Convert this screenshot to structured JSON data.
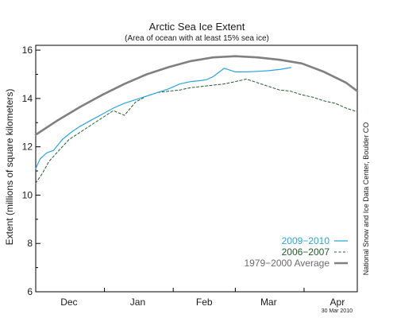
{
  "colors": {
    "series_2009_2010": "#29a6e0",
    "series_2006_2007": "#1f5c2a",
    "average": "#808080",
    "axes": "#000000"
  },
  "chart_data": {
    "type": "line",
    "title": "Arctic Sea Ice Extent",
    "subtitle": "(Area of ocean with at least 15% sea ice)",
    "ylabel": "Extent (millions of square kilometers)",
    "xlabel": "",
    "ylim": [
      6,
      16.2
    ],
    "yticks": [
      6,
      8,
      10,
      12,
      14,
      16
    ],
    "xticks": [
      "Dec",
      "Jan",
      "Feb",
      "Mar",
      "Apr"
    ],
    "xlim_days": [
      0,
      145
    ],
    "xtick_days": [
      15,
      46,
      76,
      105,
      136
    ],
    "grid": false,
    "legend_position": "bottom-right",
    "series": [
      {
        "name": "2009−2010",
        "style": "solid",
        "color": "#29a6e0",
        "x": [
          0,
          2,
          5,
          8,
          12,
          16,
          20,
          25,
          30,
          35,
          40,
          45,
          50,
          55,
          60,
          65,
          70,
          75,
          77,
          80,
          85,
          90,
          95,
          100,
          105,
          110,
          115
        ],
        "values": [
          11.1,
          11.5,
          11.75,
          11.85,
          12.3,
          12.6,
          12.85,
          13.1,
          13.35,
          13.6,
          13.8,
          13.95,
          14.1,
          14.25,
          14.4,
          14.6,
          14.7,
          14.75,
          14.78,
          14.9,
          15.25,
          15.1,
          15.1,
          15.12,
          15.15,
          15.2,
          15.28
        ]
      },
      {
        "name": "2006−2007",
        "style": "dashed",
        "color": "#1f5c2a",
        "x": [
          0,
          3,
          6,
          10,
          15,
          20,
          25,
          30,
          35,
          40,
          45,
          50,
          55,
          60,
          65,
          70,
          75,
          80,
          85,
          90,
          95,
          100,
          105,
          110,
          115,
          120,
          125,
          130,
          135,
          140,
          145
        ],
        "values": [
          10.5,
          10.9,
          11.4,
          11.8,
          12.3,
          12.6,
          12.9,
          13.2,
          13.5,
          13.3,
          13.85,
          14.1,
          14.25,
          14.3,
          14.35,
          14.45,
          14.5,
          14.55,
          14.6,
          14.7,
          14.8,
          14.65,
          14.5,
          14.35,
          14.3,
          14.15,
          14.05,
          13.9,
          13.8,
          13.6,
          13.45
        ]
      },
      {
        "name": "1979−2000 Average",
        "style": "solid-thick",
        "color": "#808080",
        "x": [
          0,
          10,
          20,
          30,
          40,
          50,
          60,
          70,
          80,
          90,
          100,
          110,
          120,
          130,
          140,
          145
        ],
        "values": [
          12.5,
          13.1,
          13.65,
          14.15,
          14.6,
          15.0,
          15.3,
          15.55,
          15.7,
          15.75,
          15.7,
          15.6,
          15.45,
          15.1,
          14.65,
          14.3
        ]
      }
    ]
  },
  "credit": "National Snow and Ice Data Center, Boulder CO",
  "date_stamp": "30 Mar 2010"
}
